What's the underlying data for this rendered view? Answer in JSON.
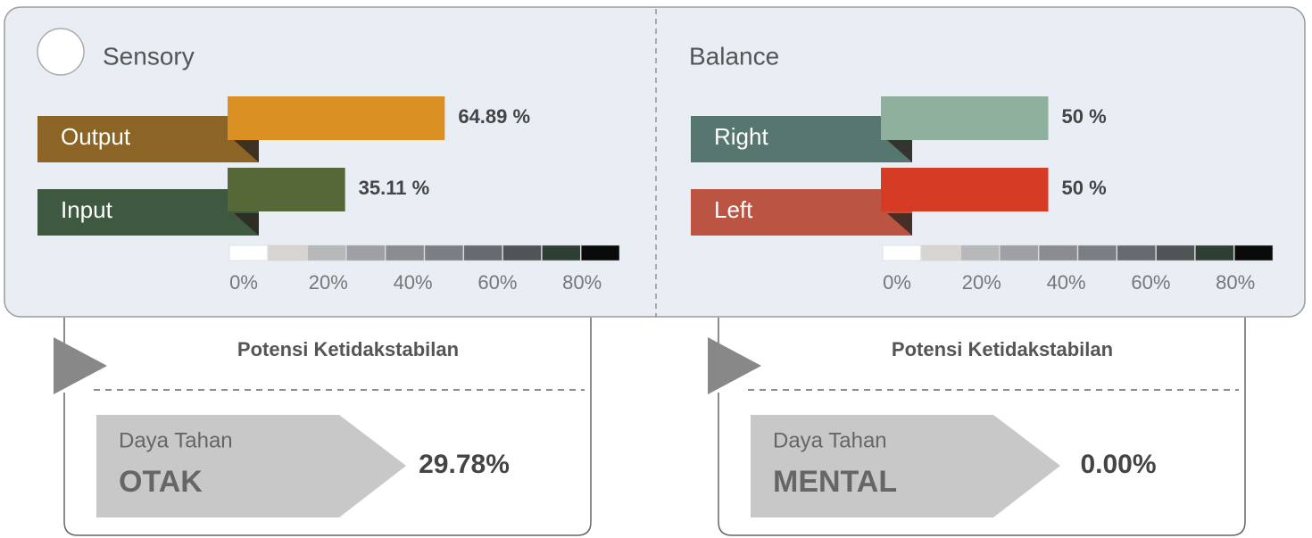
{
  "panels": [
    {
      "title": "Sensory",
      "xlim": [
        0,
        100
      ],
      "bars": [
        {
          "name": "Output",
          "value": 64.89,
          "value_label": "64.89 %",
          "color": "#db9121",
          "tab_color": "#8b6426"
        },
        {
          "name": "Input",
          "value": 35.11,
          "value_label": "35.11 %",
          "color": "#566838",
          "tab_color": "#3f5840"
        }
      ],
      "scale_colors": [
        "#ffffff",
        "#d8d4d1",
        "#b8b8bb",
        "#a0a0a4",
        "#8c8c90",
        "#7b7f84",
        "#666b70",
        "#4f5556",
        "#2e3e33",
        "#0a0a0a"
      ],
      "scale_ticks": [
        {
          "value": 0,
          "label": "0%"
        },
        {
          "value": 20,
          "label": "20%"
        },
        {
          "value": 40,
          "label": "40%"
        },
        {
          "value": 60,
          "label": "60%"
        },
        {
          "value": 80,
          "label": "80%"
        }
      ]
    },
    {
      "title": "Balance",
      "xlim": [
        0,
        100
      ],
      "bars": [
        {
          "name": "Right",
          "value": 50,
          "value_label": "50 %",
          "color": "#8fb09c",
          "tab_color": "#587670"
        },
        {
          "name": "Left",
          "value": 50,
          "value_label": "50 %",
          "color": "#d53b25",
          "tab_color": "#bb5442"
        }
      ],
      "scale_colors": [
        "#ffffff",
        "#d8d4d1",
        "#b8b8bb",
        "#a0a0a4",
        "#8c8c90",
        "#7b7f84",
        "#666b70",
        "#4f5556",
        "#2e3e33",
        "#0a0a0a"
      ],
      "scale_ticks": [
        {
          "value": 0,
          "label": "0%"
        },
        {
          "value": 20,
          "label": "20%"
        },
        {
          "value": 40,
          "label": "40%"
        },
        {
          "value": 60,
          "label": "60%"
        },
        {
          "value": 80,
          "label": "80%"
        }
      ]
    }
  ],
  "cards": [
    {
      "heading": "Potensi Ketidakstabilan",
      "label": "Daya Tahan",
      "name": "OTAK",
      "result": "29.78%"
    },
    {
      "heading": "Potensi Ketidakstabilan",
      "label": "Daya Tahan",
      "name": "MENTAL",
      "result": "0.00%"
    }
  ]
}
